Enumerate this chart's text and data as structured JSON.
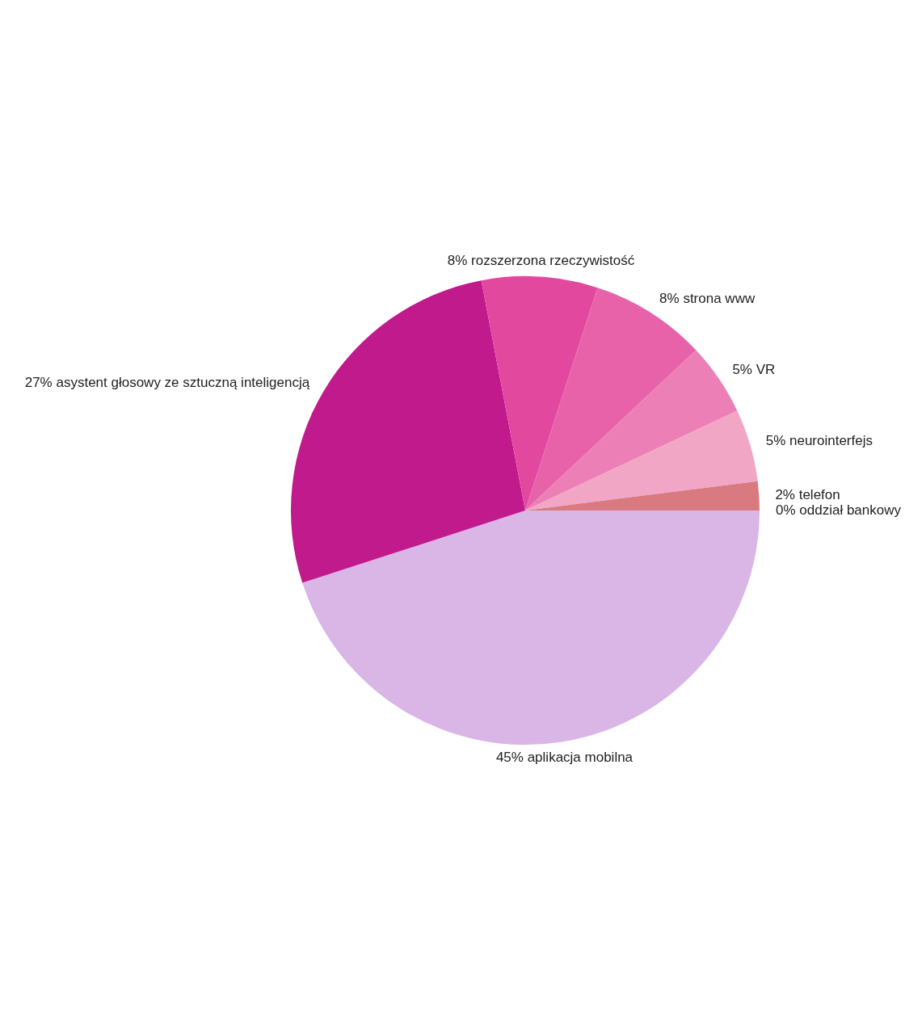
{
  "chart_data": {
    "type": "pie",
    "categories": [
      "aplikacja mobilna",
      "asystent głosowy ze sztuczną inteligencją",
      "rozszerzona rzeczywistość",
      "strona www",
      "VR",
      "neurointerfejs",
      "telefon",
      "oddział bankowy"
    ],
    "values": [
      45,
      27,
      8,
      8,
      5,
      5,
      2,
      0
    ],
    "value_labels": [
      "45%",
      "27%",
      "8%",
      "8%",
      "5%",
      "5%",
      "2%",
      "0%"
    ],
    "colors": [
      "#d9b6e6",
      "#c01a8c",
      "#e3489f",
      "#e862aa",
      "#ec7fb6",
      "#f2a6c6",
      "#d97a80",
      "#f6d400"
    ]
  }
}
